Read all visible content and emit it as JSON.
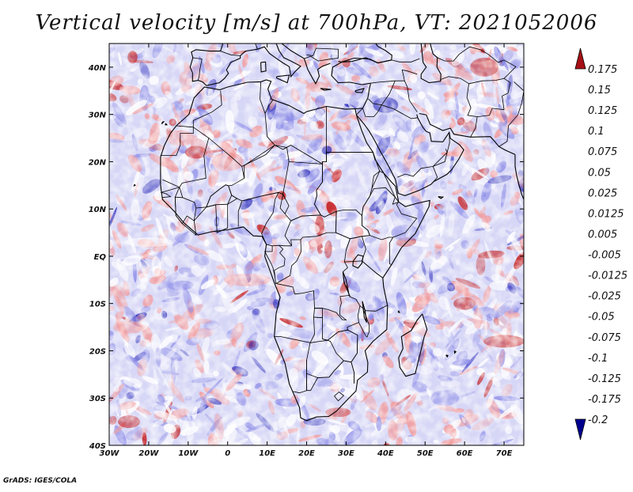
{
  "title": "Vertical velocity [m/s] at 700hPa, VT: 2021052006",
  "credit": "GrADS: IGES/COLA",
  "axes": {
    "lat_labels": [
      "40N",
      "30N",
      "20N",
      "10N",
      "EQ",
      "10S",
      "20S",
      "30S",
      "40S"
    ],
    "lat_values": [
      40,
      30,
      20,
      10,
      0,
      -10,
      -20,
      -30,
      -40
    ],
    "lon_labels": [
      "30W",
      "20W",
      "10W",
      "0",
      "10E",
      "20E",
      "30E",
      "40E",
      "50E",
      "60E",
      "70E"
    ],
    "lon_values": [
      -30,
      -20,
      -10,
      0,
      10,
      20,
      30,
      40,
      50,
      60,
      70
    ],
    "lon_range": [
      -30,
      75
    ],
    "lat_range": [
      -40,
      45
    ]
  },
  "colorbar": {
    "labels": [
      "0.175",
      "0.15",
      "0.125",
      "0.1",
      "0.075",
      "0.05",
      "0.025",
      "0.0125",
      "0.005",
      "-0.005",
      "-0.0125",
      "-0.025",
      "-0.05",
      "-0.075",
      "-0.1",
      "-0.125",
      "-0.175",
      "-0.2"
    ],
    "colors": [
      "#a50f15",
      "#c4161c",
      "#d72a2a",
      "#e34a4a",
      "#ec6b6b",
      "#f38e8e",
      "#f7b0b0",
      "#fbd2d2",
      "#fdeaea",
      "#ffffff",
      "#e4e4fb",
      "#cacaf6",
      "#aeaef0",
      "#9090ea",
      "#7272e0",
      "#5252d6",
      "#3232c4",
      "#1414a8",
      "#000090"
    ]
  },
  "field_colors": {
    "background": "#d6d6f6",
    "positive": "#f29a9a",
    "strong_positive": "#c41a1a",
    "negative": "#8e8ee8",
    "strong_negative": "#2424b8",
    "neutral": "#ffffff",
    "boundary": "#000000"
  }
}
